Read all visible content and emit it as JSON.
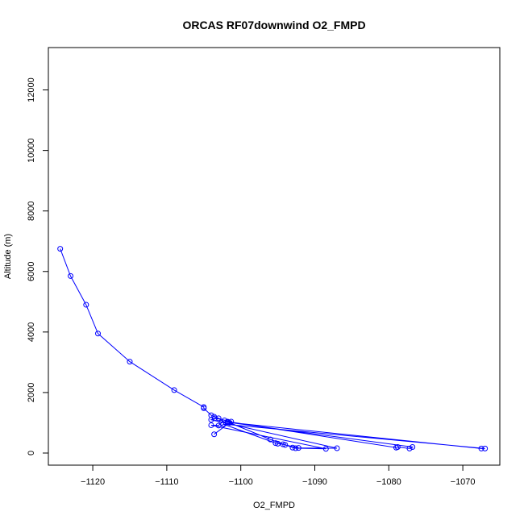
{
  "chart_data": {
    "type": "line",
    "title": "ORCAS RF07downwind O2_FMPD",
    "xlabel": "O2_FMPD",
    "ylabel": "Altitude (m)",
    "xlim": [
      -1126,
      -1065
    ],
    "ylim": [
      -400,
      13400
    ],
    "x_ticks": [
      -1120,
      -1110,
      -1100,
      -1090,
      -1080,
      -1070
    ],
    "y_ticks": [
      0,
      2000,
      4000,
      6000,
      8000,
      10000,
      12000
    ],
    "grid": false,
    "marker": "open-circle",
    "colors": {
      "series": "#0000ff"
    },
    "series": [
      {
        "x": [
          -1124.4,
          -1123.0,
          -1120.9,
          -1119.3,
          -1115.0,
          -1109.0,
          -1105.0,
          -1105.0,
          -1104.0,
          -1103.6,
          -1103.0,
          -1102.2,
          -1101.5,
          -1096.0,
          -1093.0,
          -1092.6,
          -1088.5,
          -1104.0,
          -1103.0,
          -1102.6,
          -1101.8,
          -1079.0,
          -1078.8,
          -1077.2,
          -1076.8,
          -1101.8,
          -1067.5,
          -1067.0,
          -1102.4,
          -1095.3,
          -1095.0,
          -1094.3,
          -1094.0,
          -1092.2,
          -1087.0,
          -1104.0,
          -1103.5,
          -1101.3,
          -1103.6
        ],
        "y": [
          6750,
          5850,
          4900,
          3950,
          3020,
          2080,
          1520,
          1480,
          1250,
          1200,
          1150,
          1080,
          1000,
          450,
          180,
          160,
          140,
          920,
          910,
          1000,
          1040,
          180,
          200,
          150,
          200,
          1020,
          150,
          150,
          960,
          330,
          310,
          290,
          270,
          170,
          160,
          1100,
          1150,
          1040,
          620
        ]
      }
    ]
  }
}
